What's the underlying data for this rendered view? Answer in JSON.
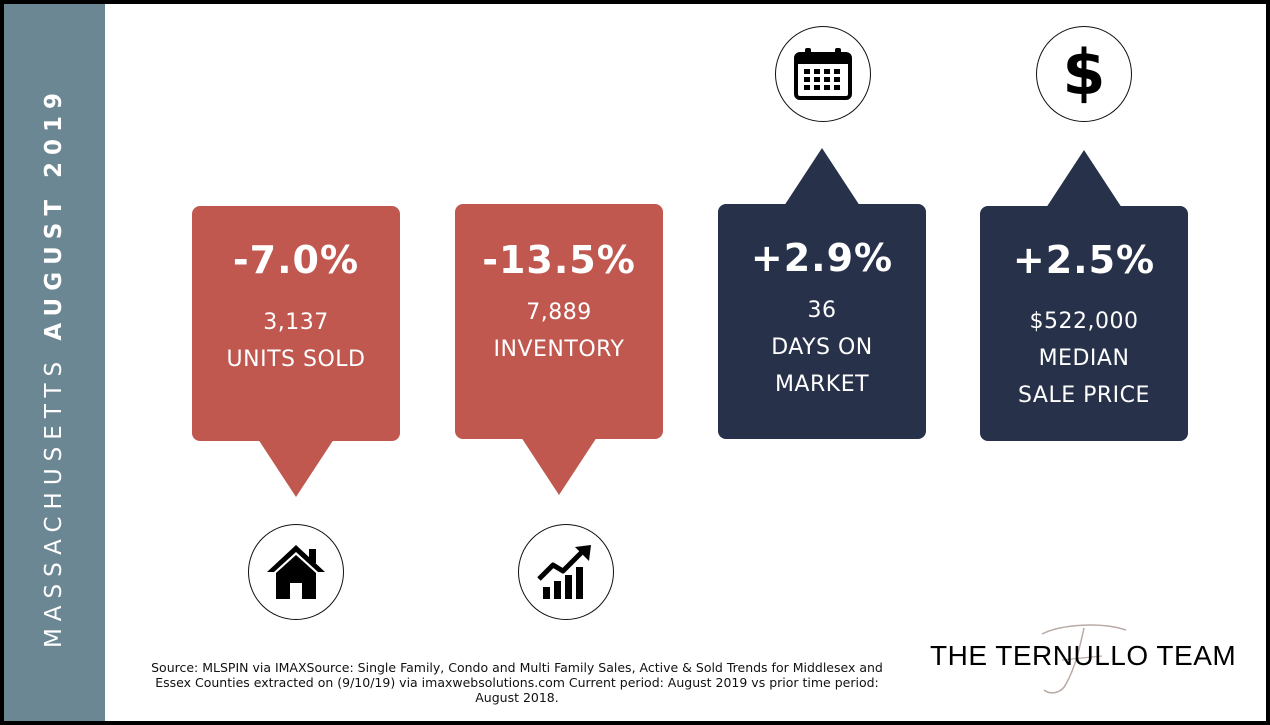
{
  "sidebar": {
    "state": "MASSACHUSETTS",
    "period": "AUGUST 2019",
    "color": "#6c8794"
  },
  "colors": {
    "red_card": "#c05850",
    "navy_card": "#27324a"
  },
  "stats": [
    {
      "change": "-7.0%",
      "lines": [
        "3,137",
        "UNITS SOLD"
      ],
      "icon": "house-icon"
    },
    {
      "change": "-13.5%",
      "lines": [
        "7,889",
        "INVENTORY"
      ],
      "icon": "bar-chart-up-icon"
    },
    {
      "change": "+2.9%",
      "lines": [
        "36",
        "DAYS ON",
        "MARKET"
      ],
      "icon": "calendar-icon"
    },
    {
      "change": "+2.5%",
      "lines": [
        "$522,000",
        "MEDIAN",
        "SALE PRICE"
      ],
      "icon": "dollar-icon"
    }
  ],
  "source_note": "Source: MLSPIN via IMAXSource: Single Family, Condo and Multi Family Sales, Active & Sold Trends for Middlesex and Essex Counties extracted on (9/10/19) via imaxwebsolutions.com Current period: August 2019 vs prior time period: August 2018.",
  "brand": {
    "name": "THE TERNULLO TEAM",
    "monogram": "T"
  }
}
